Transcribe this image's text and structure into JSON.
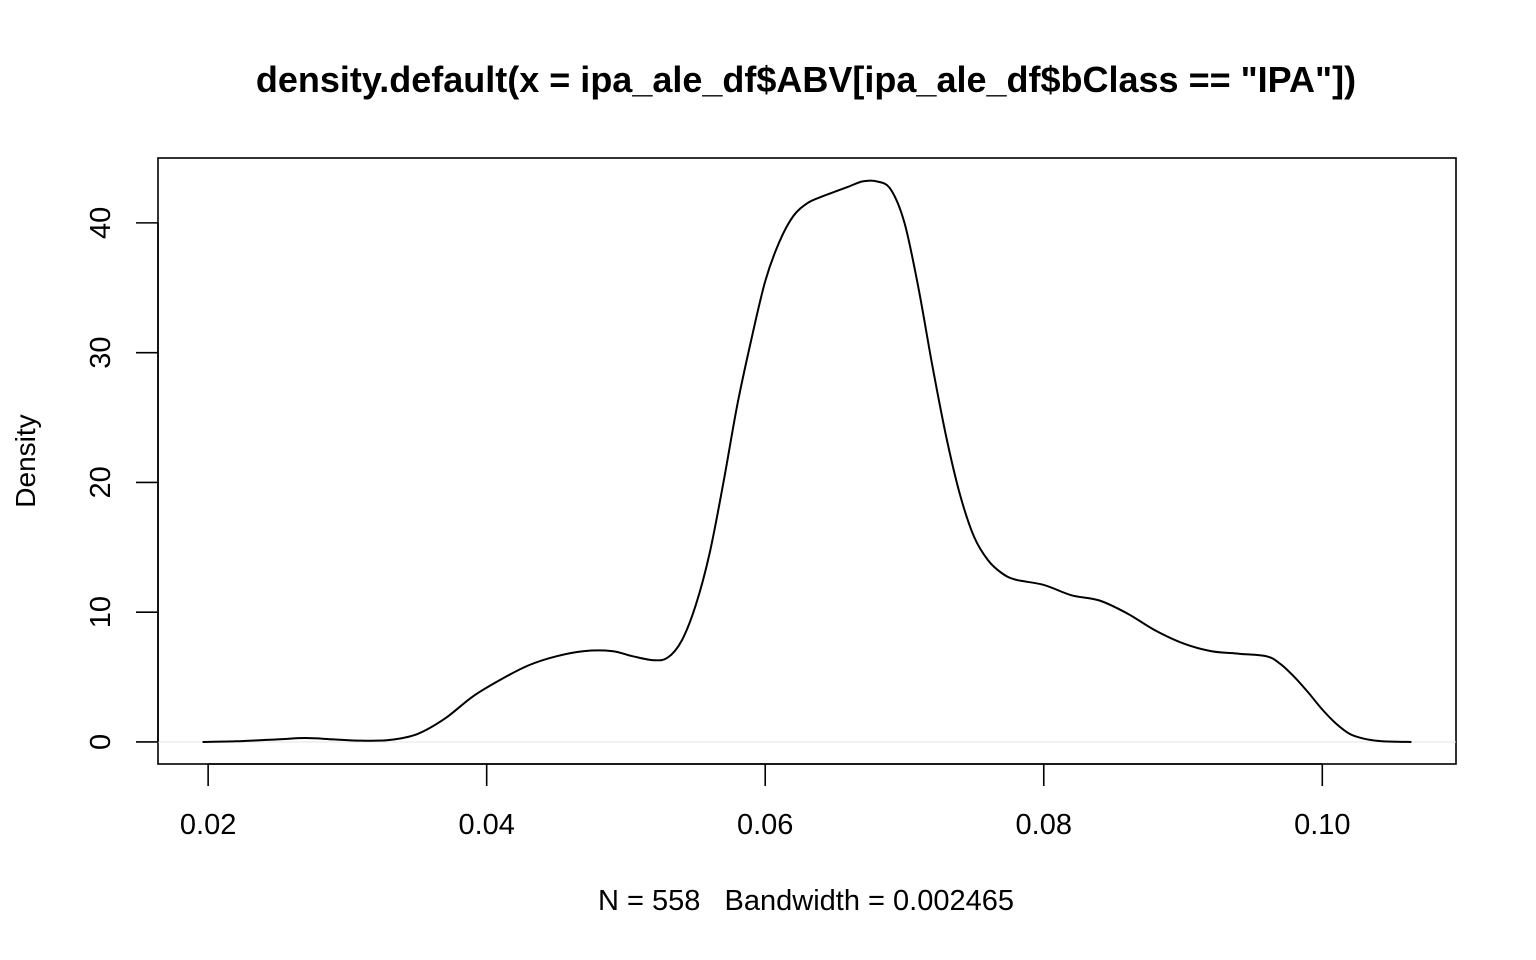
{
  "chart_data": {
    "type": "line",
    "title": "density.default(x = ipa_ale_df$ABV[ipa_ale_df$bClass == \"IPA\"])",
    "xlabel": "N = 558   Bandwidth = 0.002465",
    "ylabel": "Density",
    "xlim": [
      0.0164,
      0.1096
    ],
    "ylim": [
      -1.7,
      45.0
    ],
    "x_ticks": [
      0.02,
      0.04,
      0.06,
      0.08,
      0.1
    ],
    "x_tick_labels": [
      "0.02",
      "0.04",
      "0.06",
      "0.08",
      "0.10"
    ],
    "y_ticks": [
      0,
      10,
      20,
      30,
      40
    ],
    "y_tick_labels": [
      "0",
      "10",
      "20",
      "30",
      "40"
    ],
    "grid": false,
    "zero_line": true,
    "series": [
      {
        "x": [
          0.0196,
          0.022,
          0.025,
          0.027,
          0.029,
          0.031,
          0.033,
          0.035,
          0.037,
          0.039,
          0.041,
          0.043,
          0.045,
          0.047,
          0.049,
          0.0505,
          0.052,
          0.053,
          0.054,
          0.055,
          0.056,
          0.057,
          0.058,
          0.059,
          0.06,
          0.061,
          0.062,
          0.063,
          0.064,
          0.065,
          0.066,
          0.067,
          0.068,
          0.069,
          0.07,
          0.071,
          0.072,
          0.073,
          0.074,
          0.075,
          0.076,
          0.077,
          0.078,
          0.08,
          0.082,
          0.084,
          0.086,
          0.088,
          0.09,
          0.092,
          0.094,
          0.096,
          0.097,
          0.098,
          0.099,
          0.1,
          0.101,
          0.102,
          0.103,
          0.104,
          0.105,
          0.1064
        ],
        "y": [
          0.0,
          0.05,
          0.2,
          0.3,
          0.2,
          0.1,
          0.15,
          0.6,
          1.8,
          3.5,
          4.8,
          5.9,
          6.6,
          7.0,
          7.0,
          6.6,
          6.3,
          6.5,
          7.8,
          10.5,
          14.5,
          20.0,
          26.0,
          31.0,
          35.5,
          38.5,
          40.5,
          41.5,
          42.0,
          42.4,
          42.8,
          43.2,
          43.2,
          42.6,
          40.0,
          35.0,
          29.0,
          23.5,
          19.0,
          15.8,
          14.0,
          13.0,
          12.5,
          12.1,
          11.3,
          10.9,
          9.9,
          8.6,
          7.6,
          7.0,
          6.8,
          6.6,
          6.0,
          5.0,
          3.8,
          2.5,
          1.4,
          0.6,
          0.25,
          0.08,
          0.02,
          0.0
        ]
      }
    ]
  }
}
